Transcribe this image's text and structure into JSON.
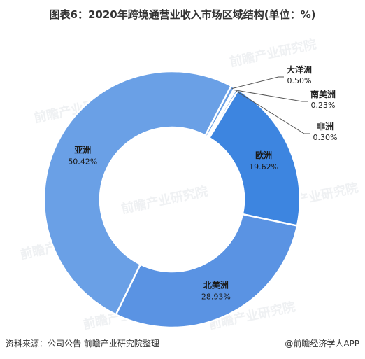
{
  "title": "图表6：2020年跨境通营业收入市场区域结构(单位：%)",
  "footer": {
    "source": "资料来源：公司公告 前瞻产业研究院整理",
    "brand": "@前瞻经济学人APP"
  },
  "watermark": "前瞻产业研究院",
  "chart_data": {
    "type": "pie",
    "donut": true,
    "start": "top-right, clockwise from 大洋洲",
    "slices": [
      {
        "name": "大洋洲",
        "value": 0.5,
        "label": "0.50%",
        "color": "#6aa0e6"
      },
      {
        "name": "南美洲",
        "value": 0.23,
        "label": "0.23%",
        "color": "#6aa0e6"
      },
      {
        "name": "非洲",
        "value": 0.3,
        "label": "0.30%",
        "color": "#6aa0e6"
      },
      {
        "name": "欧洲",
        "value": 19.62,
        "label": "19.62%",
        "color": "#3d85e0"
      },
      {
        "name": "北美洲",
        "value": 28.93,
        "label": "28.93%",
        "color": "#5a93e3"
      },
      {
        "name": "亚洲",
        "value": 50.42,
        "label": "50.42%",
        "color": "#6aa0e6"
      }
    ]
  }
}
